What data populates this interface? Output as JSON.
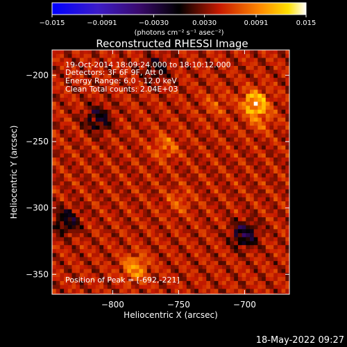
{
  "title": "Reconstructed RHESSI Image",
  "timestamp": "18-May-2022 09:27",
  "colorbar": {
    "tick_labels": [
      "-0.015",
      "-0.0091",
      "-0.0030",
      "0.0030",
      "0.0091",
      "0.015"
    ],
    "tick_values": [
      -0.015,
      -0.0091,
      -0.003,
      0.003,
      0.0091,
      0.015
    ],
    "range": [
      -0.015,
      0.015
    ],
    "units_label": "(photons cm⁻² s⁻¹ asec⁻²)",
    "colormap": "blue-purple-black-red-orange-yellow-white"
  },
  "annotations": [
    "19-Oct-2014 18:09:24.000 to 18:10:12.000",
    "Detectors: 3F 6F 9F, Att 0",
    "Energy Range: 6.0 - 12.0 keV",
    "Clean     Total counts: 2.04E+03"
  ],
  "peak_label": "Position of Peak = [-692,-221]",
  "chart_data": {
    "type": "heatmap",
    "title": "Reconstructed RHESSI Image",
    "xlabel": "Heliocentric X (arcsec)",
    "ylabel": "Heliocentric Y (arcsec)",
    "xlim": [
      -846,
      -666
    ],
    "ylim": [
      -365,
      -181
    ],
    "x_ticks": [
      -800,
      -750,
      -700
    ],
    "x_tick_labels": [
      "−800",
      "−750",
      "−700"
    ],
    "y_ticks": [
      -200,
      -250,
      -300,
      -350
    ],
    "y_tick_labels": [
      "−200",
      "−250",
      "−300",
      "−350"
    ],
    "peak_position": [
      -692,
      -221
    ],
    "hotspots": [
      {
        "x": -692,
        "y": -221,
        "value": 0.015
      },
      {
        "x": -783,
        "y": -345,
        "value": 0.012
      },
      {
        "x": -760,
        "y": -254,
        "value": 0.009
      },
      {
        "x": -688,
        "y": -234,
        "value": 0.008
      },
      {
        "x": -750,
        "y": -295,
        "value": 0.0075
      },
      {
        "x": -722,
        "y": -222,
        "value": 0.007
      }
    ],
    "coldspots": [
      {
        "x": -700,
        "y": -320,
        "value": -0.006
      },
      {
        "x": -811,
        "y": -233,
        "value": -0.004
      },
      {
        "x": -835,
        "y": -310,
        "value": -0.004
      },
      {
        "x": -767,
        "y": -195,
        "value": -0.002
      }
    ],
    "color_range": [
      -0.015,
      0.015
    ]
  }
}
